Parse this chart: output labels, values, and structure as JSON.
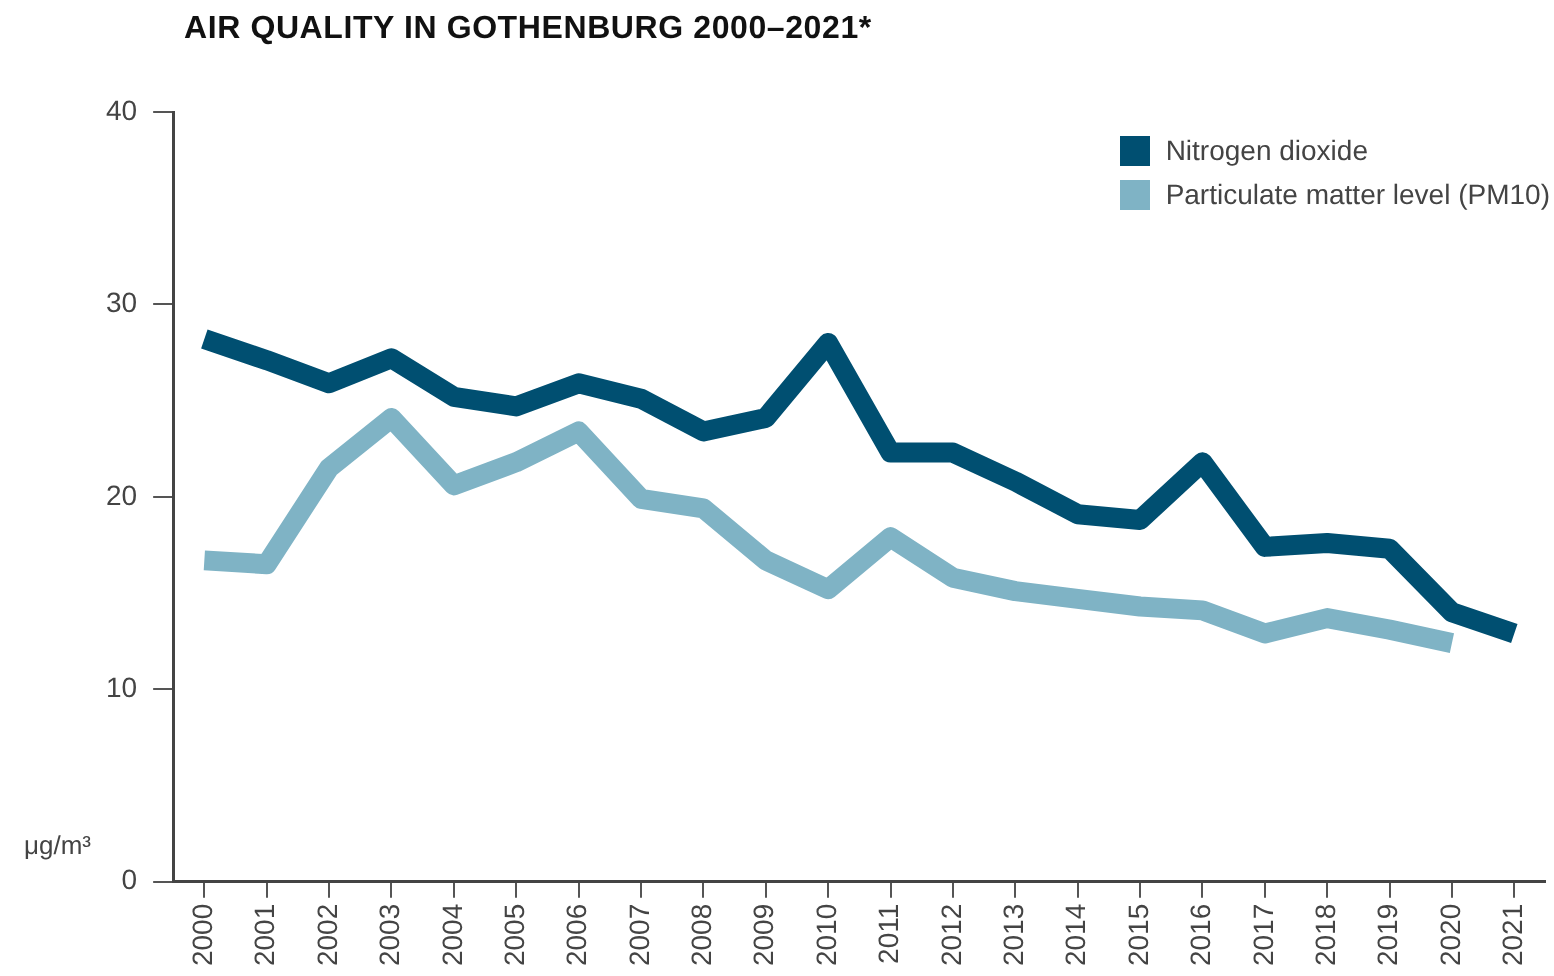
{
  "chart_data": {
    "type": "line",
    "title": "AIR QUALITY IN GOTHENBURG 2000–2021*",
    "ylabel": "μg/m³",
    "categories": [
      "2000",
      "2001",
      "2002",
      "2003",
      "2004",
      "2005",
      "2006",
      "2007",
      "2008",
      "2009",
      "2010",
      "2011",
      "2012",
      "2013",
      "2014",
      "2015",
      "2016",
      "2017",
      "2018",
      "2019",
      "2020",
      "2021"
    ],
    "series": [
      {
        "name": "Nitrogen dioxide",
        "color": "#004f71",
        "values": [
          28.2,
          27.1,
          25.9,
          27.2,
          25.2,
          24.7,
          25.9,
          25.1,
          23.4,
          24.1,
          28.0,
          22.3,
          22.3,
          20.8,
          19.1,
          18.8,
          21.8,
          17.4,
          17.6,
          17.3,
          14.0,
          12.9
        ]
      },
      {
        "name": "Particulate matter level (PM10)",
        "color": "#7fb3c5",
        "values": [
          16.7,
          16.5,
          21.5,
          24.1,
          20.6,
          21.8,
          23.4,
          19.9,
          19.4,
          16.7,
          15.2,
          17.9,
          15.8,
          15.1,
          14.7,
          14.3,
          14.1,
          12.9,
          13.7,
          13.1,
          12.4,
          null
        ]
      }
    ],
    "ylim": [
      0,
      40
    ],
    "yticks": [
      0,
      10,
      20,
      30,
      40
    ],
    "grid": false,
    "legend": "top right",
    "marker": "none",
    "line_style": "solid"
  }
}
